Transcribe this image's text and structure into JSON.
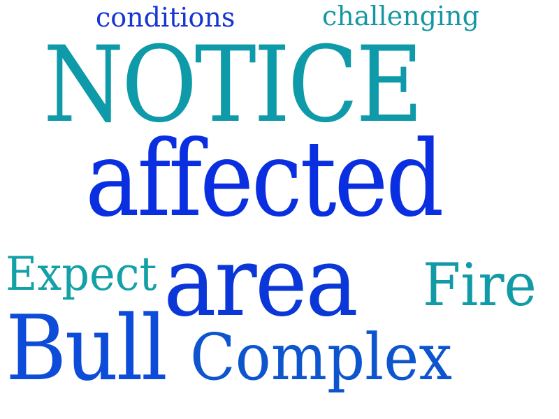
{
  "words": {
    "conditions": "conditions",
    "challenging": "challenging",
    "notice": "NOTICE",
    "affected": "affected",
    "expect": "Expect",
    "area": "area",
    "fire": "Fire",
    "bull": "Bull",
    "complex": "Complex"
  },
  "colors": {
    "teal": "#0e9aa8",
    "blue": "#0a2fe0",
    "royal_blue": "#1736d1",
    "mid_blue": "#0d55cf",
    "background": "#ffffff"
  }
}
